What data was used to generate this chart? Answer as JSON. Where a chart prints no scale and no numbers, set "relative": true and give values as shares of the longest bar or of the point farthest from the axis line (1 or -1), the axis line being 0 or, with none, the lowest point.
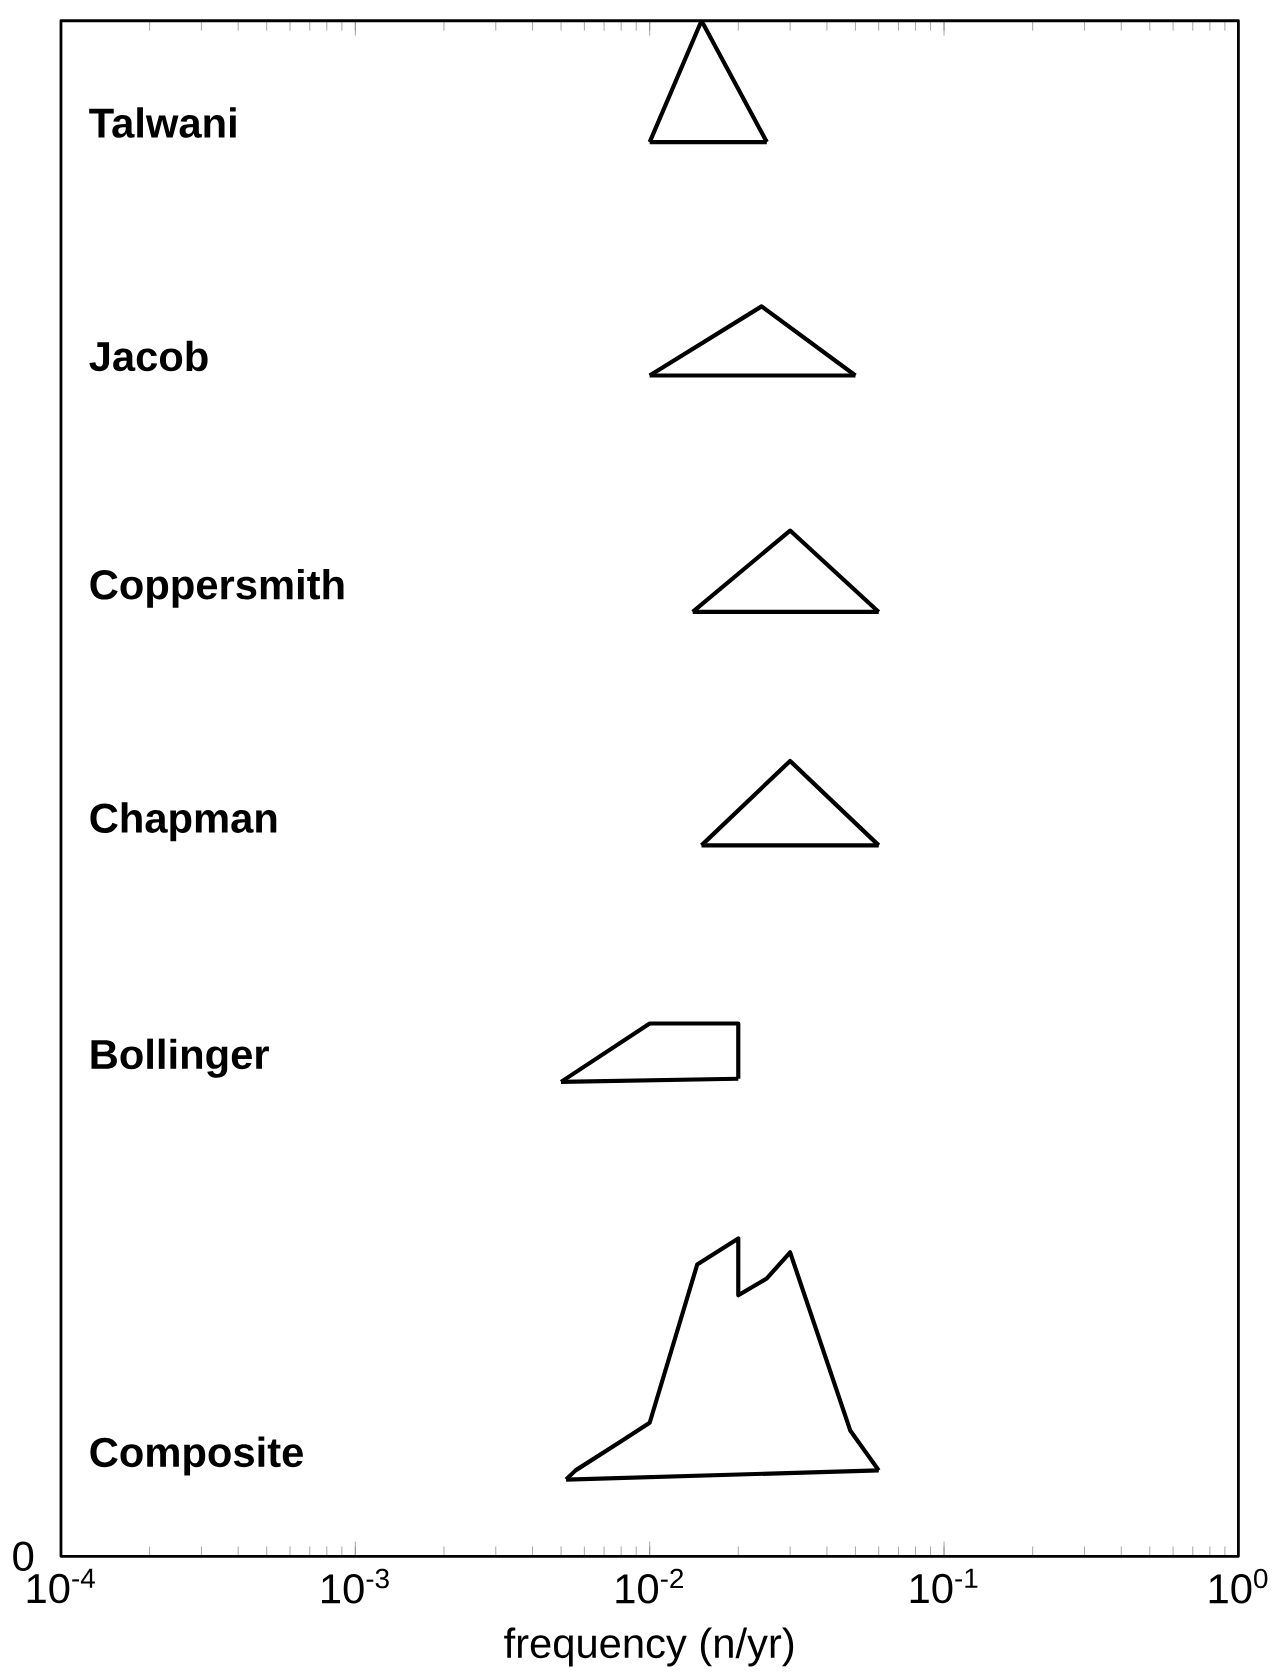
{
  "chart_data": {
    "type": "line",
    "xlabel": "frequency (n/yr)",
    "log": "x",
    "relative": true,
    "annotations": [
      "0",
      "Talwani",
      "Jacob",
      "Coppersmith",
      "Chapman",
      "Bollinger",
      "Composite"
    ],
    "xlim": [
      0.0001,
      1
    ],
    "xticks": [
      {
        "value": 0.0001,
        "label": "10$^{-4}$"
      },
      {
        "value": 0.001,
        "label": "10$^{-3}$"
      },
      {
        "value": 0.01,
        "label": "10$^{-2}$"
      },
      {
        "value": 0.1,
        "label": "10$^{-1}$"
      },
      {
        "value": 1,
        "label": "10$^{0}$"
      }
    ],
    "grid": false,
    "marker": "none",
    "line_style": "solid",
    "series": [
      {
        "color": "#000000",
        "x": [
          0.01,
          0.015,
          0.025
        ],
        "values": [
          0.921,
          1.0,
          0.921
        ]
      },
      {
        "color": "#000000",
        "x": [
          0.01,
          0.025
        ],
        "values": [
          0.921,
          0.921
        ]
      },
      {
        "color": "#000000",
        "x": [
          0.01,
          0.024,
          0.05
        ],
        "values": [
          0.769,
          0.814,
          0.769
        ]
      },
      {
        "color": "#000000",
        "x": [
          0.01,
          0.05
        ],
        "values": [
          0.769,
          0.769
        ]
      },
      {
        "color": "#000000",
        "x": [
          0.014,
          0.03,
          0.06
        ],
        "values": [
          0.615,
          0.668,
          0.615
        ]
      },
      {
        "color": "#000000",
        "x": [
          0.014,
          0.06
        ],
        "values": [
          0.615,
          0.615
        ]
      },
      {
        "color": "#000000",
        "x": [
          0.015,
          0.03,
          0.06
        ],
        "values": [
          0.463,
          0.518,
          0.463
        ]
      },
      {
        "color": "#000000",
        "x": [
          0.015,
          0.06
        ],
        "values": [
          0.463,
          0.463
        ]
      },
      {
        "color": "#000000",
        "x": [
          0.005,
          0.01,
          0.02,
          0.02
        ],
        "values": [
          0.309,
          0.347,
          0.347,
          0.311
        ]
      },
      {
        "color": "#000000",
        "x": [
          0.005,
          0.02
        ],
        "values": [
          0.309,
          0.311
        ]
      },
      {
        "color": "#000000",
        "x": [
          0.0052,
          0.0056,
          0.008,
          0.01,
          0.0145,
          0.02,
          0.02,
          0.025,
          0.03,
          0.048,
          0.06
        ],
        "values": [
          0.05,
          0.056,
          0.075,
          0.087,
          0.19,
          0.207,
          0.17,
          0.181,
          0.198,
          0.082,
          0.056
        ]
      },
      {
        "color": "#000000",
        "x": [
          0.0052,
          0.06
        ],
        "values": [
          0.05,
          0.056
        ]
      }
    ]
  }
}
